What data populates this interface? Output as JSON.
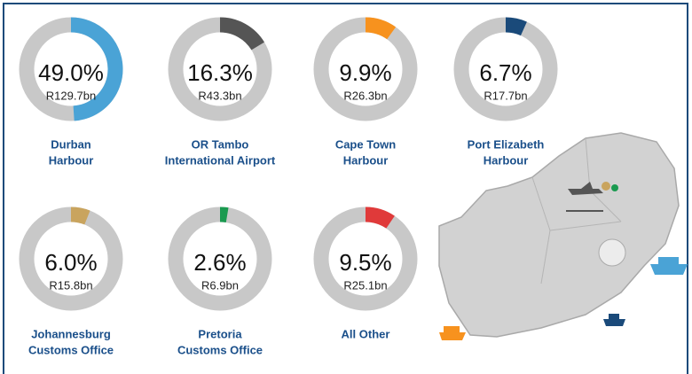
{
  "chart_data": {
    "type": "donut",
    "categories": [
      [
        "Durban",
        "Harbour"
      ],
      [
        "OR Tambo",
        "International Airport"
      ],
      [
        "Cape Town",
        "Harbour"
      ],
      [
        "Port Elizabeth",
        "Harbour"
      ],
      [
        "Johannesburg",
        "Customs Office"
      ],
      [
        "Pretoria",
        "Customs Office"
      ],
      [
        "All Other"
      ]
    ],
    "values": [
      49.0,
      16.3,
      9.9,
      6.7,
      6.0,
      2.6,
      9.5
    ],
    "value_labels": [
      "49.0%",
      "16.3%",
      "9.9%",
      "6.7%",
      "6.0%",
      "2.6%",
      "9.5%"
    ],
    "amounts": [
      "R129.7bn",
      "R43.3bn",
      "R26.3bn",
      "R17.7bn",
      "R15.8bn",
      "R6.9bn",
      "R25.1bn"
    ],
    "colors": [
      "#4aa3d6",
      "#555555",
      "#f7921e",
      "#1a4a7a",
      "#c9a45e",
      "#1a9a50",
      "#e03a3a"
    ],
    "track_color": "#c8c8c8"
  }
}
